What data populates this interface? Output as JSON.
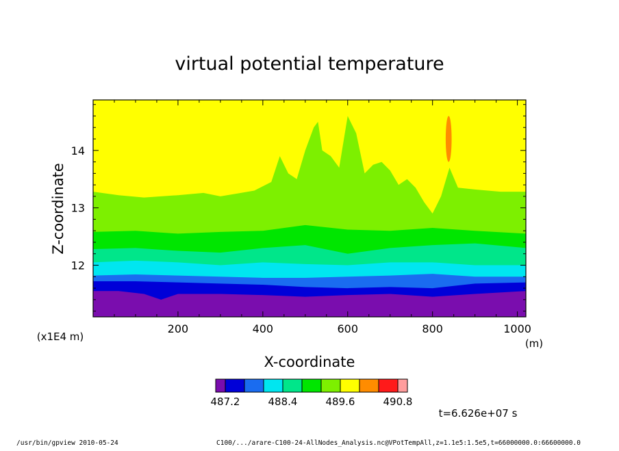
{
  "chart_data": {
    "type": "heatmap",
    "title": "virtual potential temperature",
    "xlabel": "X-coordinate",
    "ylabel": "Z-coordinate",
    "x_unit": "(m)",
    "y_unit": "(x1E4 m)",
    "xlim": [
      0,
      1020
    ],
    "ylim": [
      11.1,
      14.88
    ],
    "x_ticks": [
      200,
      400,
      600,
      800,
      1000
    ],
    "y_ticks": [
      12,
      13,
      14
    ],
    "colorbar": {
      "levels": [
        486.8,
        487.2,
        487.6,
        488.0,
        488.4,
        488.8,
        489.2,
        489.6,
        490.0,
        490.4,
        490.8,
        491.2
      ],
      "labels": [
        "487.2",
        "488.4",
        "489.6",
        "490.8"
      ],
      "label_values": [
        487.2,
        488.4,
        489.6,
        490.8
      ],
      "colors": [
        "#7a0dae",
        "#0000d8",
        "#1a6cf0",
        "#00e6f0",
        "#00e68a",
        "#00e600",
        "#7df000",
        "#ffff00",
        "#ff8c00",
        "#ff1a1a",
        "#ff9d9d"
      ]
    },
    "contours": [
      {
        "level_index": 1,
        "color": "#0000d8",
        "points": [
          [
            0,
            11.55
          ],
          [
            60,
            11.55
          ],
          [
            120,
            11.5
          ],
          [
            160,
            11.4
          ],
          [
            200,
            11.5
          ],
          [
            300,
            11.5
          ],
          [
            400,
            11.48
          ],
          [
            500,
            11.45
          ],
          [
            600,
            11.48
          ],
          [
            700,
            11.5
          ],
          [
            800,
            11.45
          ],
          [
            900,
            11.5
          ],
          [
            1020,
            11.55
          ]
        ]
      },
      {
        "level_index": 2,
        "color": "#1a6cf0",
        "points": [
          [
            0,
            11.72
          ],
          [
            100,
            11.72
          ],
          [
            200,
            11.7
          ],
          [
            300,
            11.68
          ],
          [
            400,
            11.66
          ],
          [
            500,
            11.62
          ],
          [
            600,
            11.6
          ],
          [
            700,
            11.62
          ],
          [
            800,
            11.6
          ],
          [
            900,
            11.68
          ],
          [
            1020,
            11.7
          ]
        ]
      },
      {
        "level_index": 3,
        "color": "#00e6f0",
        "points": [
          [
            0,
            11.82
          ],
          [
            100,
            11.84
          ],
          [
            200,
            11.82
          ],
          [
            300,
            11.8
          ],
          [
            400,
            11.78
          ],
          [
            500,
            11.78
          ],
          [
            600,
            11.8
          ],
          [
            700,
            11.82
          ],
          [
            800,
            11.85
          ],
          [
            900,
            11.8
          ],
          [
            1020,
            11.8
          ]
        ]
      },
      {
        "level_index": 4,
        "color": "#00e68a",
        "points": [
          [
            0,
            12.05
          ],
          [
            100,
            12.08
          ],
          [
            200,
            12.05
          ],
          [
            300,
            12.0
          ],
          [
            400,
            12.05
          ],
          [
            500,
            12.02
          ],
          [
            600,
            12.0
          ],
          [
            700,
            12.05
          ],
          [
            800,
            12.05
          ],
          [
            900,
            12.0
          ],
          [
            1020,
            12.0
          ]
        ]
      },
      {
        "level_index": 5,
        "color": "#00e600",
        "points": [
          [
            0,
            12.28
          ],
          [
            100,
            12.3
          ],
          [
            200,
            12.25
          ],
          [
            300,
            12.22
          ],
          [
            400,
            12.3
          ],
          [
            500,
            12.35
          ],
          [
            600,
            12.2
          ],
          [
            700,
            12.3
          ],
          [
            800,
            12.35
          ],
          [
            900,
            12.38
          ],
          [
            1020,
            12.3
          ]
        ]
      },
      {
        "level_index": 6,
        "color": "#7df000",
        "points": [
          [
            0,
            12.58
          ],
          [
            100,
            12.6
          ],
          [
            200,
            12.55
          ],
          [
            300,
            12.58
          ],
          [
            400,
            12.6
          ],
          [
            500,
            12.7
          ],
          [
            600,
            12.62
          ],
          [
            700,
            12.6
          ],
          [
            800,
            12.65
          ],
          [
            900,
            12.6
          ],
          [
            1020,
            12.55
          ]
        ]
      },
      {
        "level_index": 7,
        "color": "#ffff00",
        "points": [
          [
            0,
            13.28
          ],
          [
            60,
            13.22
          ],
          [
            120,
            13.18
          ],
          [
            200,
            13.22
          ],
          [
            260,
            13.26
          ],
          [
            300,
            13.2
          ],
          [
            340,
            13.25
          ],
          [
            380,
            13.3
          ],
          [
            420,
            13.45
          ],
          [
            440,
            13.9
          ],
          [
            460,
            13.6
          ],
          [
            480,
            13.5
          ],
          [
            500,
            14.0
          ],
          [
            520,
            14.4
          ],
          [
            530,
            14.5
          ],
          [
            540,
            14.0
          ],
          [
            560,
            13.9
          ],
          [
            580,
            13.7
          ],
          [
            600,
            14.6
          ],
          [
            620,
            14.3
          ],
          [
            640,
            13.6
          ],
          [
            660,
            13.75
          ],
          [
            680,
            13.8
          ],
          [
            700,
            13.65
          ],
          [
            720,
            13.4
          ],
          [
            740,
            13.5
          ],
          [
            760,
            13.35
          ],
          [
            780,
            13.1
          ],
          [
            800,
            12.9
          ],
          [
            820,
            13.2
          ],
          [
            840,
            13.7
          ],
          [
            860,
            13.35
          ],
          [
            900,
            13.32
          ],
          [
            960,
            13.28
          ],
          [
            1020,
            13.28
          ]
        ]
      }
    ],
    "hotspot": {
      "level_index": 8,
      "color": "#ff8c00",
      "x": 838,
      "y_bottom": 13.8,
      "y_top": 14.6,
      "x_halfwidth": 7
    },
    "base_level_index": 0,
    "time_label": "t=6.626e+07 s"
  },
  "footer": {
    "left": "/usr/bin/gpview   2010-05-24",
    "right": "C100/.../arare-C100-24-AllNodes_Analysis.nc@VPotTempAll,z=1.1e5:1.5e5,t=66000000.0:66600000.0"
  }
}
